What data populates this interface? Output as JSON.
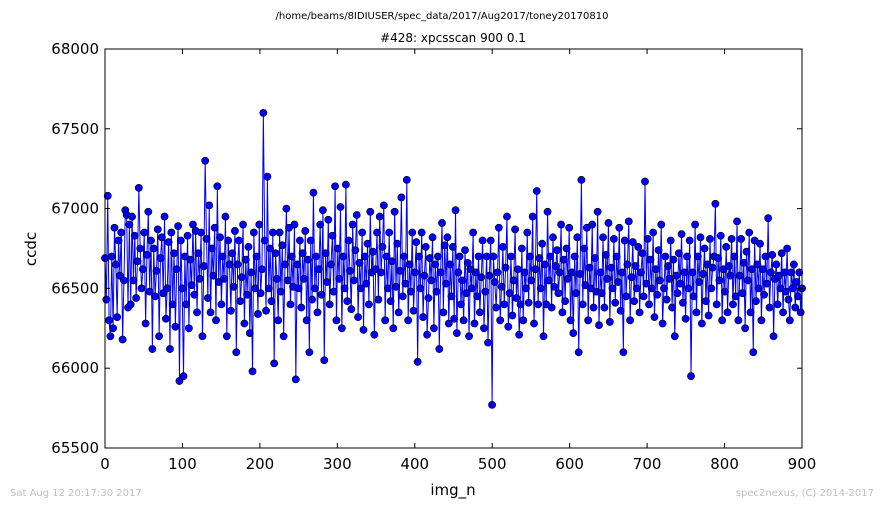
{
  "figure": {
    "path": "/home/beams/8IDIUSER/spec_data/2017/Aug2017/toney20170810",
    "footer_left": "Sat Aug 12 20:17:30 2017",
    "footer_right": "spec2nexus, (C) 2014-2017"
  },
  "chart_data": {
    "type": "line",
    "title": "#428: xpcsscan 900 0.1",
    "xlabel": "img_n",
    "ylabel": "ccdc",
    "xlim": [
      0,
      900
    ],
    "ylim": [
      65500,
      68000
    ],
    "xticks": [
      0,
      100,
      200,
      300,
      400,
      500,
      600,
      700,
      800,
      900
    ],
    "yticks": [
      65500,
      66000,
      66500,
      67000,
      67500,
      68000
    ],
    "grid": false,
    "legend": "none",
    "marker": "circle",
    "color": "#0000ff",
    "series": [
      {
        "values": [
          66690,
          66430,
          67080,
          66300,
          66200,
          66700,
          66250,
          66880,
          66650,
          66320,
          66800,
          66580,
          66850,
          66180,
          66550,
          66990,
          66960,
          66380,
          66900,
          66400,
          66950,
          66550,
          66830,
          66440,
          66670,
          67130,
          66750,
          66500,
          66620,
          66850,
          66280,
          66710,
          66980,
          66480,
          66800,
          66120,
          66750,
          66450,
          66610,
          66870,
          66200,
          66690,
          66820,
          66470,
          66950,
          66310,
          66500,
          66790,
          66120,
          66850,
          66400,
          66720,
          66260,
          66620,
          66890,
          65920,
          66800,
          66500,
          65950,
          66700,
          66400,
          66830,
          66250,
          66680,
          66520,
          66900,
          66460,
          66860,
          66350,
          66720,
          66560,
          66850,
          66200,
          66640,
          67300,
          66810,
          66440,
          67020,
          66350,
          66750,
          66580,
          66880,
          66300,
          67140,
          66540,
          66820,
          66400,
          66700,
          66560,
          66950,
          66200,
          66800,
          66650,
          66360,
          66720,
          66510,
          66860,
          66100,
          66650,
          66800,
          66420,
          66570,
          66900,
          66280,
          66680,
          66460,
          66760,
          66220,
          66600,
          65980,
          66850,
          66500,
          66700,
          66340,
          66900,
          66470,
          66620,
          67600,
          66800,
          66360,
          67200,
          66500,
          66750,
          66420,
          66850,
          66030,
          66720,
          66560,
          66300,
          66850,
          66480,
          66770,
          66200,
          66650,
          67000,
          66550,
          66880,
          66400,
          66700,
          66510,
          66900,
          65930,
          66650,
          66500,
          66800,
          66380,
          66720,
          66560,
          66860,
          66300,
          66680,
          66100,
          66800,
          66430,
          67100,
          66500,
          66700,
          66350,
          66620,
          66900,
          66460,
          66990,
          66050,
          66720,
          66540,
          66930,
          66400,
          66650,
          66830,
          66480,
          67140,
          66300,
          66750,
          66560,
          67010,
          66250,
          66700,
          66500,
          67150,
          66420,
          66800,
          66610,
          66370,
          66900,
          66550,
          66740,
          66960,
          66320,
          66660,
          66500,
          66850,
          66240,
          66700,
          66530,
          66780,
          66400,
          66980,
          66600,
          66730,
          66210,
          66620,
          66850,
          66430,
          66950,
          66600,
          66760,
          67020,
          66300,
          66700,
          66500,
          66850,
          66420,
          66670,
          66250,
          66980,
          66510,
          66780,
          66350,
          66610,
          67070,
          66450,
          66700,
          66530,
          67180,
          66300,
          66650,
          66480,
          66850,
          66360,
          66600,
          66790,
          66040,
          66700,
          66500,
          66850,
          66320,
          66580,
          66760,
          66210,
          66440,
          66690,
          66550,
          66820,
          66250,
          66650,
          66480,
          66700,
          66120,
          66600,
          66910,
          66350,
          66770,
          66530,
          66820,
          66280,
          66650,
          66450,
          66760,
          66310,
          66990,
          66220,
          66600,
          66700,
          66400,
          66550,
          66300,
          66740,
          66470,
          66660,
          66200,
          66620,
          66500,
          66850,
          66280,
          66600,
          66450,
          66700,
          66350,
          66570,
          66800,
          66250,
          66480,
          66700,
          66160,
          66580,
          66800,
          65770,
          66700,
          66540,
          66380,
          66600,
          66880,
          66300,
          66510,
          66760,
          66400,
          66630,
          66950,
          66260,
          66470,
          66700,
          66330,
          66550,
          66870,
          66440,
          66620,
          66210,
          66400,
          66750,
          66300,
          66600,
          66500,
          66850,
          66410,
          66700,
          66550,
          66950,
          66280,
          66620,
          67110,
          66400,
          66690,
          66500,
          66780,
          66200,
          66650,
          66400,
          66980,
          66550,
          66700,
          66380,
          66820,
          66510,
          66640,
          66740,
          66470,
          66600,
          66900,
          66350,
          66680,
          66420,
          66750,
          66560,
          66880,
          66300,
          66600,
          66220,
          66700,
          66470,
          66820,
          66100,
          66590,
          67180,
          66400,
          66750,
          66520,
          66880,
          66300,
          66630,
          66500,
          66900,
          66380,
          66690,
          66480,
          66980,
          66270,
          66600,
          66470,
          66820,
          66380,
          66710,
          66560,
          66910,
          66290,
          66630,
          66500,
          66810,
          66410,
          66700,
          66540,
          66880,
          66360,
          66600,
          66100,
          66800,
          66450,
          66650,
          66920,
          66300,
          66570,
          66790,
          66420,
          66640,
          66500,
          66760,
          66350,
          66600,
          66720,
          66450,
          67170,
          66530,
          66810,
          66400,
          66680,
          66500,
          66850,
          66320,
          66620,
          66460,
          66740,
          66550,
          66900,
          66280,
          66500,
          66700,
          66430,
          66640,
          66560,
          66800,
          66380,
          66680,
          66200,
          66580,
          66470,
          66720,
          66530,
          66840,
          66410,
          66600,
          66310,
          66700,
          66500,
          66800,
          65950,
          66600,
          66450,
          66900,
          66350,
          66700,
          66540,
          66820,
          66280,
          66590,
          66750,
          66420,
          66650,
          66330,
          66810,
          66500,
          66630,
          66700,
          67030,
          66400,
          66690,
          66550,
          66830,
          66300,
          66620,
          66480,
          66760,
          66350,
          66640,
          66580,
          66810,
          66400,
          66700,
          66450,
          66920,
          66300,
          66580,
          66810,
          66470,
          66660,
          66250,
          66730,
          66550,
          66850,
          66350,
          66620,
          66100,
          66800,
          66420,
          66650,
          66500,
          66780,
          66300,
          66620,
          66460,
          66700,
          66530,
          66940,
          66380,
          66600,
          66710,
          66200,
          66560,
          66650,
          66400,
          66580,
          66500,
          66720,
          66350,
          66600,
          66480,
          66750,
          66430,
          66300,
          66600,
          66500,
          66650,
          66380,
          66540,
          66450,
          66600,
          66350,
          66500
        ]
      }
    ]
  }
}
